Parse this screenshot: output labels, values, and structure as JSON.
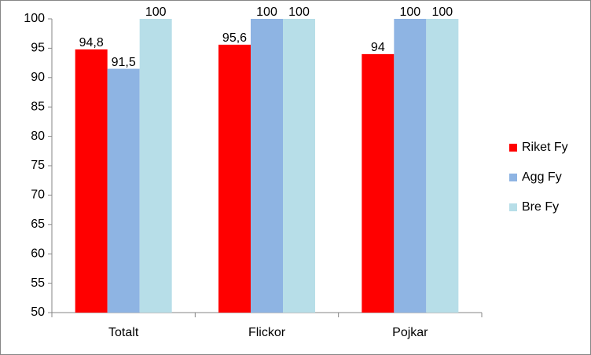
{
  "chart_data": {
    "type": "bar",
    "categories": [
      "Totalt",
      "Flickor",
      "Pojkar"
    ],
    "series": [
      {
        "name": "Riket Fy",
        "color": "#ff0000",
        "values": [
          94.8,
          95.6,
          94
        ],
        "value_labels": [
          "94,8",
          "95,6",
          "94"
        ]
      },
      {
        "name": "Agg Fy",
        "color": "#8eb4e3",
        "values": [
          91.5,
          100,
          100
        ],
        "value_labels": [
          "91,5",
          "100",
          "100"
        ]
      },
      {
        "name": "Bre Fy",
        "color": "#b7dee8",
        "values": [
          100,
          100,
          100
        ],
        "value_labels": [
          "100",
          "100",
          "100"
        ]
      }
    ],
    "ylim": [
      50,
      100
    ],
    "yticks": [
      50,
      55,
      60,
      65,
      70,
      75,
      80,
      85,
      90,
      95,
      100
    ],
    "legend": "right"
  }
}
